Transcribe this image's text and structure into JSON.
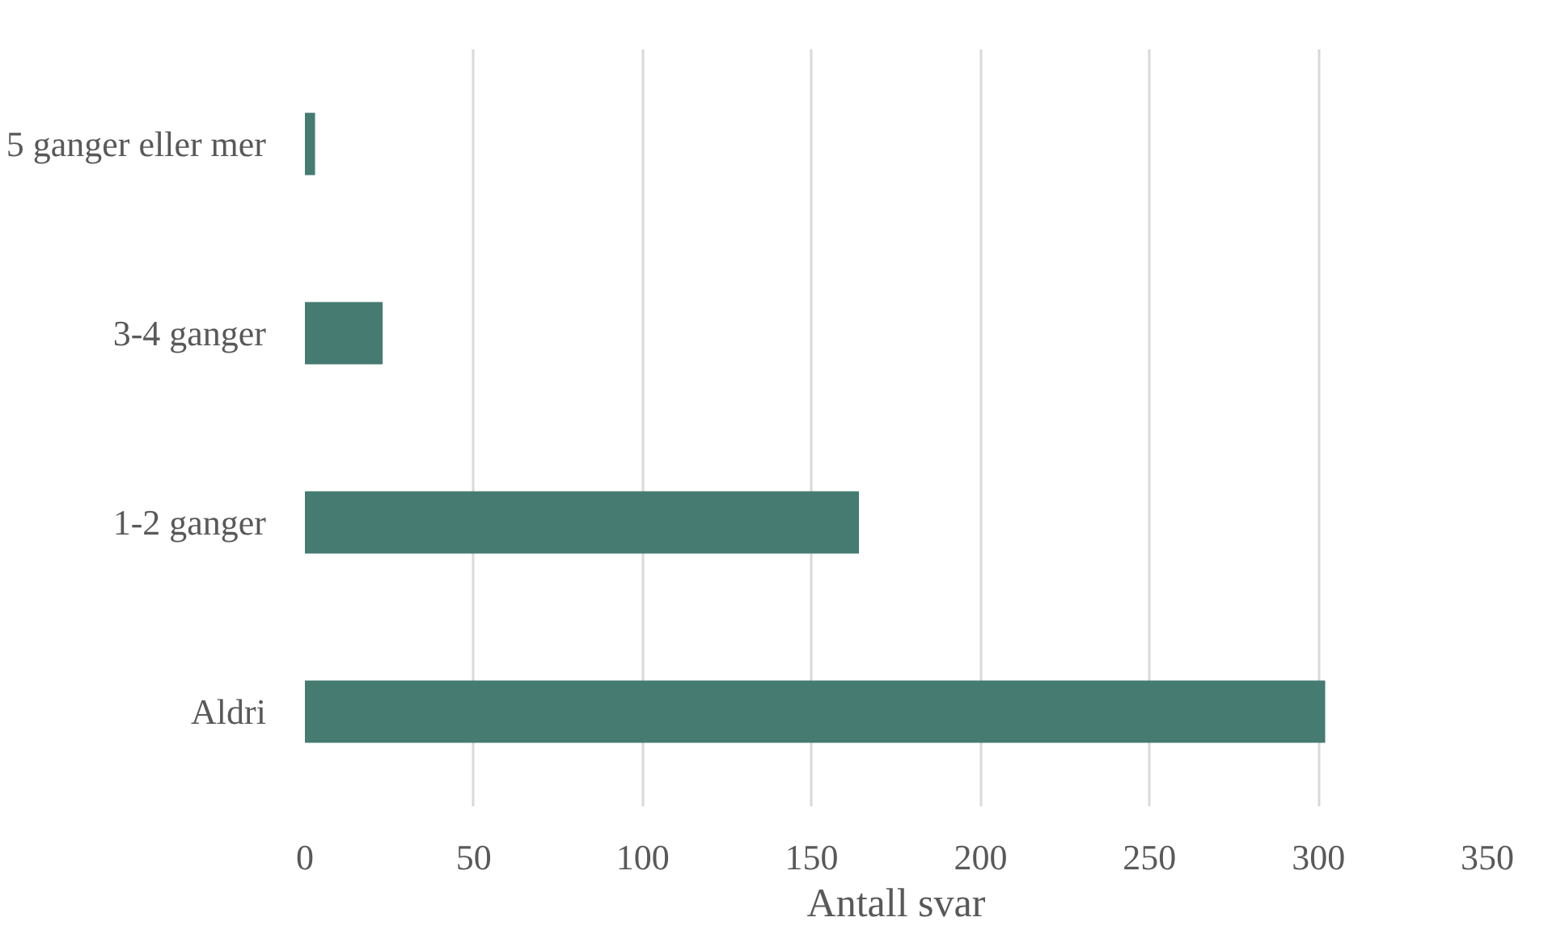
{
  "chart_data": {
    "type": "bar",
    "orientation": "horizontal",
    "xlabel": "Antall svar",
    "categories": [
      "5 ganger eller mer",
      "3-4 ganger",
      "1-2 ganger",
      "Aldri"
    ],
    "values": [
      3,
      23,
      164,
      302
    ],
    "color": "#457b70",
    "xlim": [
      0,
      350
    ],
    "xticks": [
      0,
      50,
      100,
      150,
      200,
      250,
      300,
      350
    ],
    "grid": "x"
  }
}
